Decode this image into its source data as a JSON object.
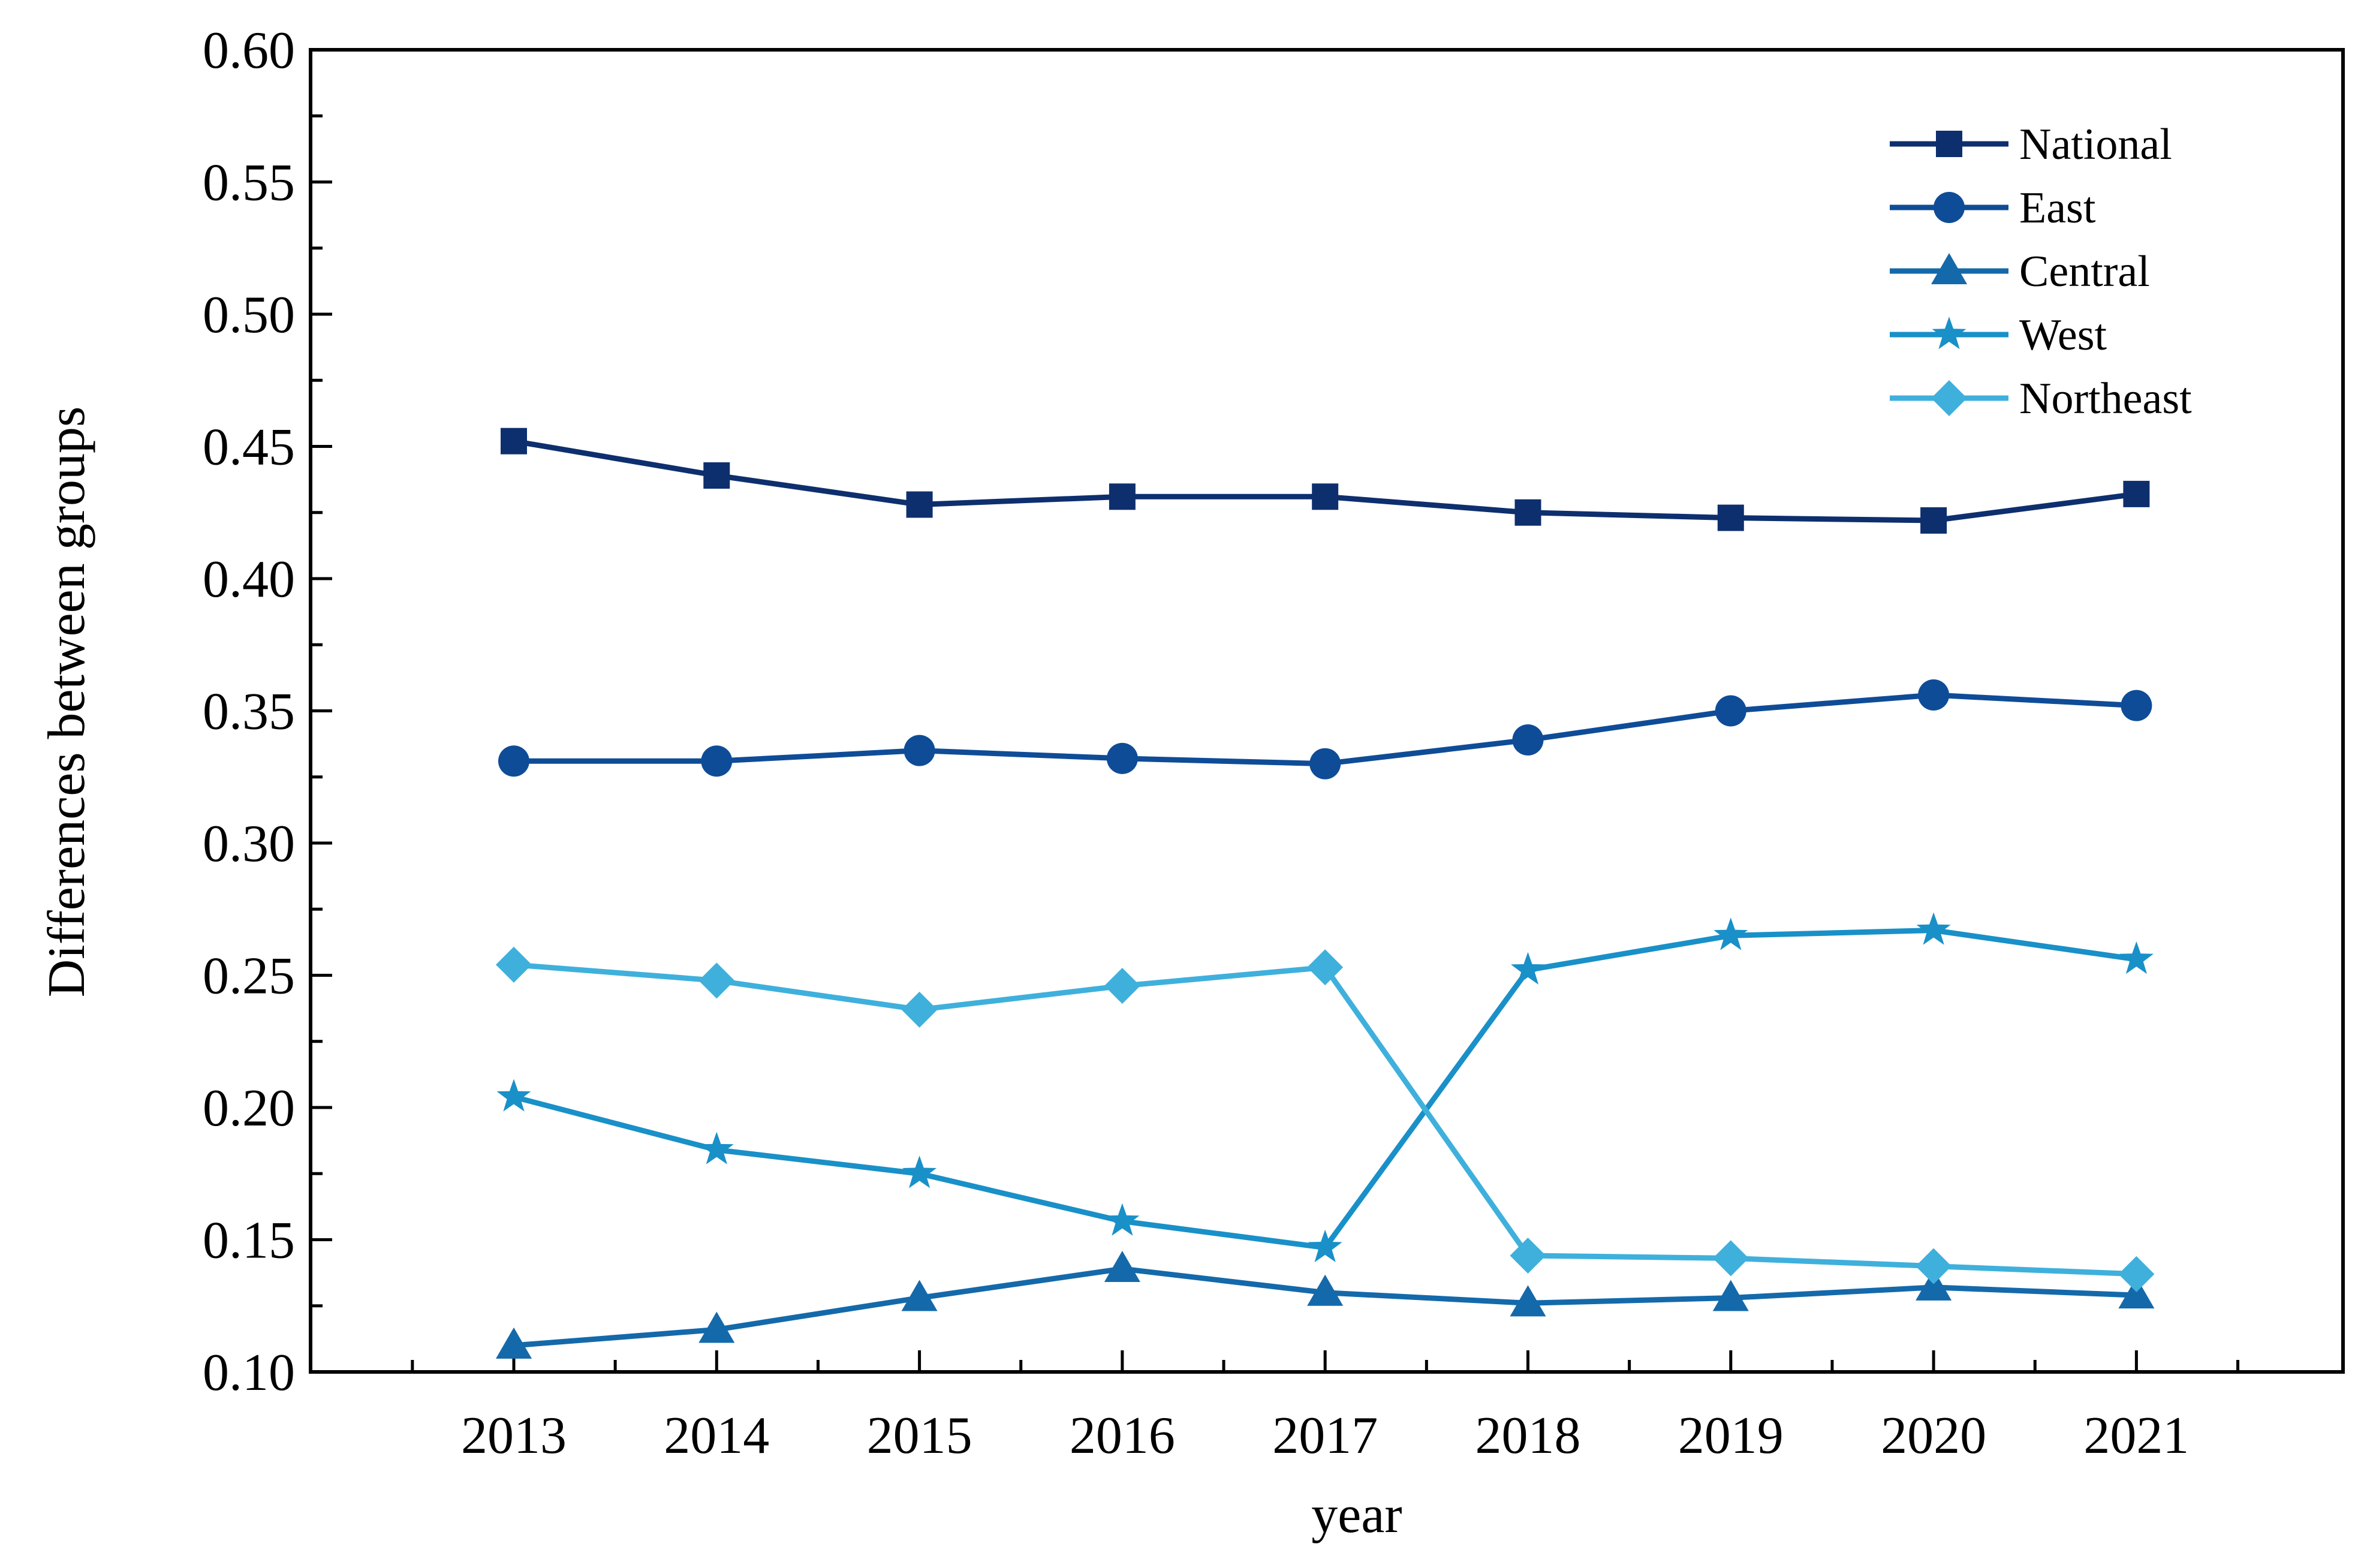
{
  "chart_data": {
    "type": "line",
    "title": "",
    "xlabel": "year",
    "ylabel": "Differences between groups",
    "categories": [
      "2013",
      "2014",
      "2015",
      "2016",
      "2017",
      "2018",
      "2019",
      "2020",
      "2021"
    ],
    "ylim": [
      0.1,
      0.6
    ],
    "yticks": [
      "0.10",
      "0.15",
      "0.20",
      "0.25",
      "0.30",
      "0.35",
      "0.40",
      "0.45",
      "0.50",
      "0.55",
      "0.60"
    ],
    "grid": false,
    "legend_position": "top-right",
    "series": [
      {
        "name": "National",
        "marker": "square",
        "color": "#0e2f6e",
        "values": [
          0.452,
          0.439,
          0.428,
          0.431,
          0.431,
          0.425,
          0.423,
          0.422,
          0.432
        ]
      },
      {
        "name": "East",
        "marker": "circle",
        "color": "#0f4c97",
        "values": [
          0.331,
          0.331,
          0.335,
          0.332,
          0.33,
          0.339,
          0.35,
          0.356,
          0.352
        ]
      },
      {
        "name": "Central",
        "marker": "triangle",
        "color": "#1469aa",
        "values": [
          0.11,
          0.116,
          0.128,
          0.139,
          0.13,
          0.126,
          0.128,
          0.132,
          0.129
        ]
      },
      {
        "name": "West",
        "marker": "star",
        "color": "#1990c8",
        "values": [
          0.204,
          0.184,
          0.175,
          0.157,
          0.147,
          0.252,
          0.265,
          0.267,
          0.256
        ]
      },
      {
        "name": "Northeast",
        "marker": "diamond",
        "color": "#3fb0dc",
        "values": [
          0.254,
          0.248,
          0.237,
          0.246,
          0.253,
          0.144,
          0.143,
          0.14,
          0.137
        ]
      }
    ]
  }
}
